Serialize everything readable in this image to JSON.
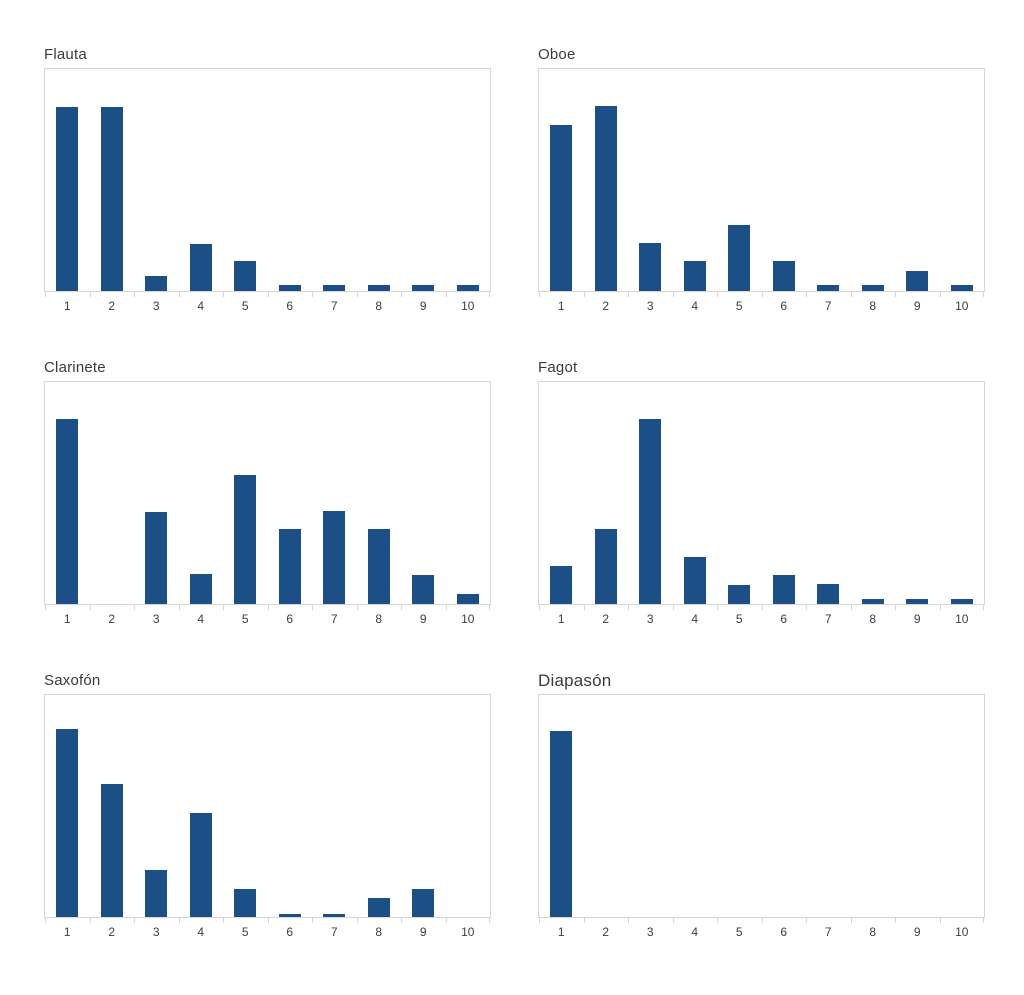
{
  "styles": {
    "bar_color": "#1B4F85",
    "axis_line_color": "#D6D6D6",
    "tick_label_color": "#3D3D3D",
    "title_color": "#3B3B3B",
    "background": "#FFFFFF"
  },
  "layout_hints": {
    "grid": "2 columns x 3 rows",
    "legend": "none",
    "y_axis_visible": false,
    "gridlines": false,
    "value_units": "percent of plot height (no y-axis labels shown in source)"
  },
  "chart_data": [
    {
      "type": "bar",
      "title": "Flauta",
      "categories": [
        "1",
        "2",
        "3",
        "4",
        "5",
        "6",
        "7",
        "8",
        "9",
        "10"
      ],
      "values": [
        83,
        83,
        6.8,
        21.3,
        13.5,
        2.6,
        2.6,
        2.6,
        2.6,
        2.6
      ],
      "xlabel": "",
      "ylabel": "",
      "ylim": [
        0,
        100
      ]
    },
    {
      "type": "bar",
      "title": "Oboe",
      "categories": [
        "1",
        "2",
        "3",
        "4",
        "5",
        "6",
        "7",
        "8",
        "9",
        "10"
      ],
      "values": [
        74.7,
        83.3,
        21.5,
        13.5,
        29.7,
        13.5,
        2.6,
        2.6,
        9,
        2.6
      ],
      "xlabel": "",
      "ylabel": "",
      "ylim": [
        0,
        100
      ]
    },
    {
      "type": "bar",
      "title": "Clarinete",
      "categories": [
        "1",
        "2",
        "3",
        "4",
        "5",
        "6",
        "7",
        "8",
        "9",
        "10"
      ],
      "values": [
        83.3,
        0,
        41.6,
        13.3,
        58,
        33.8,
        41.9,
        34,
        13,
        4.6
      ],
      "xlabel": "",
      "ylabel": "",
      "ylim": [
        0,
        100
      ]
    },
    {
      "type": "bar",
      "title": "Fagot",
      "categories": [
        "1",
        "2",
        "3",
        "4",
        "5",
        "6",
        "7",
        "8",
        "9",
        "10"
      ],
      "values": [
        17,
        34,
        83.5,
        21.3,
        8.7,
        12.9,
        8.8,
        2.3,
        2.3,
        2.3
      ],
      "xlabel": "",
      "ylabel": "",
      "ylim": [
        0,
        100
      ]
    },
    {
      "type": "bar",
      "title": "Saxofón",
      "categories": [
        "1",
        "2",
        "3",
        "4",
        "5",
        "6",
        "7",
        "8",
        "9",
        "10"
      ],
      "values": [
        84.8,
        59.7,
        21,
        46.7,
        12.5,
        1.5,
        1.5,
        8.4,
        12.5,
        0
      ],
      "xlabel": "",
      "ylabel": "",
      "ylim": [
        0,
        100
      ]
    },
    {
      "type": "bar",
      "title": "Diapasón",
      "categories": [
        "1",
        "2",
        "3",
        "4",
        "5",
        "6",
        "7",
        "8",
        "9",
        "10"
      ],
      "values": [
        84,
        0,
        0,
        0,
        0,
        0,
        0,
        0,
        0,
        0
      ],
      "xlabel": "",
      "ylabel": "",
      "ylim": [
        0,
        100
      ]
    }
  ]
}
